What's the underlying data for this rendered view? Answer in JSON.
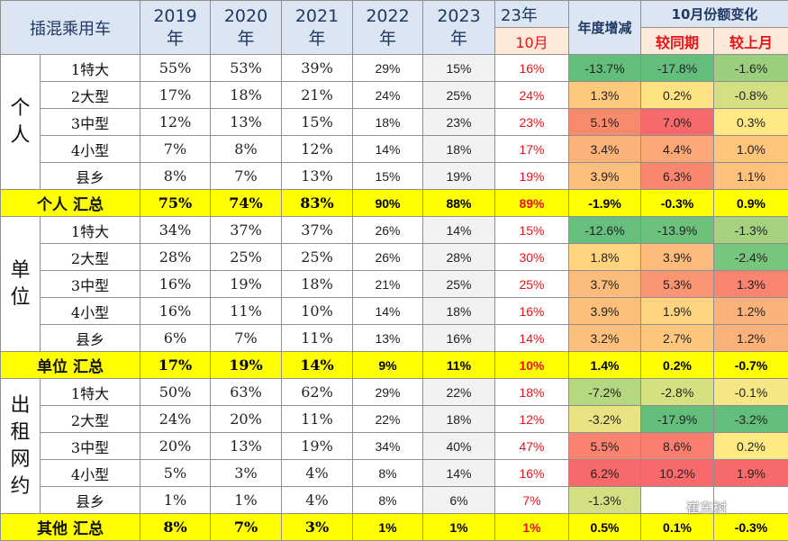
{
  "header": {
    "title": "插混乘用车",
    "years": [
      {
        "line1": "2019",
        "line2": "年"
      },
      {
        "line1": "2020",
        "line2": "年"
      },
      {
        "line1": "2021",
        "line2": "年"
      },
      {
        "line1": "2022",
        "line2": "年"
      },
      {
        "line1": "2023",
        "line2": "年"
      }
    ],
    "col23_top": "23年",
    "col23_bottom": "10月",
    "annual_change": "年度增减",
    "oct_change": "10月份额变化",
    "yoy": "较同期",
    "mom": "较上月"
  },
  "groups": [
    {
      "label": "个人",
      "rows": [
        {
          "name": "1特大",
          "y2019": "55%",
          "y2020": "53%",
          "y2021": "39%",
          "y2022": "29%",
          "y2023": "15%",
          "oct": "16%",
          "annual": "-13.7%",
          "yoy": "-17.8%",
          "mom": "-1.6%"
        },
        {
          "name": "2大型",
          "y2019": "17%",
          "y2020": "18%",
          "y2021": "21%",
          "y2022": "24%",
          "y2023": "25%",
          "oct": "24%",
          "annual": "1.3%",
          "yoy": "0.2%",
          "mom": "-0.8%"
        },
        {
          "name": "3中型",
          "y2019": "12%",
          "y2020": "13%",
          "y2021": "15%",
          "y2022": "18%",
          "y2023": "23%",
          "oct": "23%",
          "annual": "5.1%",
          "yoy": "7.0%",
          "mom": "0.3%"
        },
        {
          "name": "4小型",
          "y2019": "7%",
          "y2020": "8%",
          "y2021": "12%",
          "y2022": "14%",
          "y2023": "18%",
          "oct": "17%",
          "annual": "3.4%",
          "yoy": "4.4%",
          "mom": "1.0%"
        },
        {
          "name": "县乡",
          "y2019": "8%",
          "y2020": "7%",
          "y2021": "13%",
          "y2022": "15%",
          "y2023": "19%",
          "oct": "19%",
          "annual": "3.9%",
          "yoy": "6.3%",
          "mom": "1.1%"
        }
      ],
      "total": {
        "label": "个人 汇总",
        "y2019": "75%",
        "y2020": "74%",
        "y2021": "83%",
        "y2022": "90%",
        "y2023": "88%",
        "oct": "89%",
        "annual": "-1.9%",
        "yoy": "-0.3%",
        "mom": "0.9%"
      }
    },
    {
      "label": "单位",
      "rows": [
        {
          "name": "1特大",
          "y2019": "34%",
          "y2020": "37%",
          "y2021": "37%",
          "y2022": "26%",
          "y2023": "14%",
          "oct": "15%",
          "annual": "-12.6%",
          "yoy": "-13.9%",
          "mom": "-1.3%"
        },
        {
          "name": "2大型",
          "y2019": "28%",
          "y2020": "25%",
          "y2021": "25%",
          "y2022": "26%",
          "y2023": "28%",
          "oct": "30%",
          "annual": "1.8%",
          "yoy": "3.9%",
          "mom": "-2.4%"
        },
        {
          "name": "3中型",
          "y2019": "16%",
          "y2020": "19%",
          "y2021": "18%",
          "y2022": "21%",
          "y2023": "25%",
          "oct": "25%",
          "annual": "3.7%",
          "yoy": "5.3%",
          "mom": "1.3%"
        },
        {
          "name": "4小型",
          "y2019": "16%",
          "y2020": "11%",
          "y2021": "10%",
          "y2022": "14%",
          "y2023": "18%",
          "oct": "16%",
          "annual": "3.9%",
          "yoy": "1.9%",
          "mom": "1.2%"
        },
        {
          "name": "县乡",
          "y2019": "6%",
          "y2020": "7%",
          "y2021": "11%",
          "y2022": "13%",
          "y2023": "16%",
          "oct": "14%",
          "annual": "3.2%",
          "yoy": "2.7%",
          "mom": "1.2%"
        }
      ],
      "total": {
        "label": "单位 汇总",
        "y2019": "17%",
        "y2020": "19%",
        "y2021": "14%",
        "y2022": "9%",
        "y2023": "11%",
        "oct": "10%",
        "annual": "1.4%",
        "yoy": "0.2%",
        "mom": "-0.7%"
      }
    },
    {
      "label": "出租网约",
      "rows": [
        {
          "name": "1特大",
          "y2019": "50%",
          "y2020": "63%",
          "y2021": "62%",
          "y2022": "29%",
          "y2023": "22%",
          "oct": "18%",
          "annual": "-7.2%",
          "yoy": "-2.8%",
          "mom": "-0.1%"
        },
        {
          "name": "2大型",
          "y2019": "24%",
          "y2020": "20%",
          "y2021": "11%",
          "y2022": "22%",
          "y2023": "18%",
          "oct": "12%",
          "annual": "-3.2%",
          "yoy": "-17.9%",
          "mom": "-3.2%"
        },
        {
          "name": "3中型",
          "y2019": "20%",
          "y2020": "13%",
          "y2021": "19%",
          "y2022": "34%",
          "y2023": "40%",
          "oct": "47%",
          "annual": "5.5%",
          "yoy": "8.6%",
          "mom": "0.2%"
        },
        {
          "name": "4小型",
          "y2019": "5%",
          "y2020": "3%",
          "y2021": "4%",
          "y2022": "8%",
          "y2023": "14%",
          "oct": "16%",
          "annual": "6.2%",
          "yoy": "10.2%",
          "mom": "1.9%"
        },
        {
          "name": "县乡",
          "y2019": "1%",
          "y2020": "1%",
          "y2021": "4%",
          "y2022": "8%",
          "y2023": "6%",
          "oct": "7%",
          "annual": "-1.3%",
          "yoy": "",
          "mom": ""
        }
      ],
      "total": {
        "label": "其他 汇总",
        "y2019": "8%",
        "y2020": "7%",
        "y2021": "3%",
        "y2022": "1%",
        "y2023": "1%",
        "oct": "1%",
        "annual": "0.5%",
        "yoy": "0.1%",
        "mom": "-0.3%"
      }
    }
  ],
  "heat_colors": {
    "annual": [
      [
        "#63be7b",
        "#fcc97d",
        "#f98b6c",
        "#fcb37a",
        "#fcbe7b"
      ],
      [
        "#66bf7c",
        "#fed480",
        "#fbbb7b",
        "#fcbe7b",
        "#fdc07c"
      ],
      [
        "#b4d77f",
        "#e9e383",
        "#f98370",
        "#f8696b",
        "#d3df82"
      ]
    ],
    "yoy": [
      [
        "#63be7b",
        "#fee282",
        "#f8696b",
        "#fba776",
        "#f98770"
      ],
      [
        "#6cc17c",
        "#fcba7b",
        "#fa9472",
        "#fed480",
        "#fdc67d"
      ],
      [
        "#d6e081",
        "#63be7b",
        "#f97e6f",
        "#f8696b",
        "#ffffff"
      ]
    ],
    "mom": [
      [
        "#9bcf7e",
        "#d3df82",
        "#ffe984",
        "#fdc47c",
        "#fdc17c"
      ],
      [
        "#a6d27f",
        "#78c57d",
        "#f98570",
        "#fbb27a",
        "#fbb27a"
      ],
      [
        "#f5e884",
        "#63be7b",
        "#fee983",
        "#f8696b",
        "#ffffff"
      ]
    ],
    "total_annual": [
      "#ffff00",
      "#ffff00",
      "#ffff00"
    ],
    "group_bg": "#ffffff",
    "sum_bg": "#ffff00"
  },
  "watermark": "崔东树"
}
